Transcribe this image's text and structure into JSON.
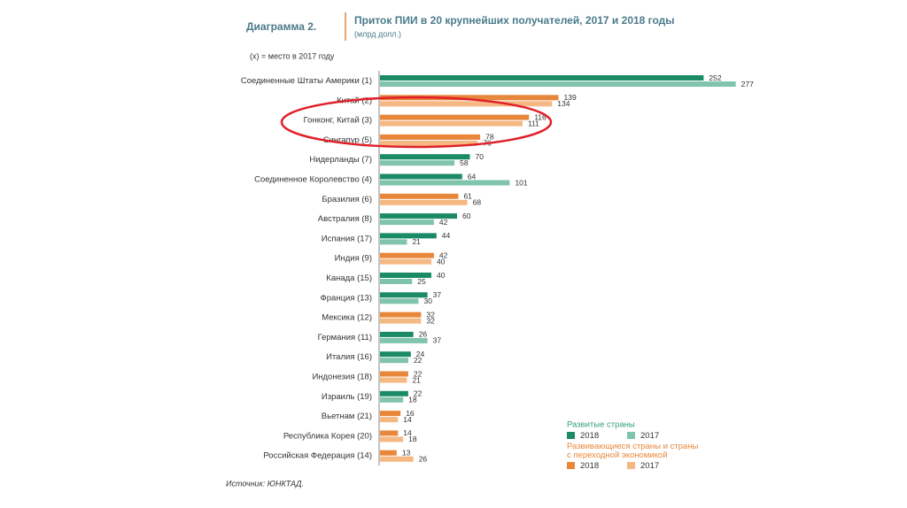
{
  "chart_data": {
    "type": "bar",
    "orientation": "horizontal",
    "figure_label": "Диаграмма 2.",
    "title": "Приток ПИИ в 20 крупнейших получателей, 2017 и 2018 годы",
    "subtitle": "(млрд долл.)",
    "note": "(x) = место в 2017 году",
    "source": "Источник: ЮНКТАД.",
    "categories": [
      "Соединенные Штаты Америки (1)",
      "Китай (2)",
      "Гонконг, Китай (3)",
      "Сингапур (5)",
      "Нидерланды (7)",
      "Соединенное Королевство (4)",
      "Бразилия (6)",
      "Австралия (8)",
      "Испания (17)",
      "Индия (9)",
      "Канада (15)",
      "Франция (13)",
      "Мексика (12)",
      "Германия (11)",
      "Италия (16)",
      "Индонезия (18)",
      "Израиль (19)",
      "Вьетнам (21)",
      "Республика Корея (20)",
      "Российская Федерация (14)"
    ],
    "groups": [
      {
        "name": "Развитые страны",
        "color": "#2e9e78",
        "series": [
          {
            "name": "2018",
            "color": "#1b8a67",
            "values": [
              252,
              null,
              null,
              null,
              70,
              64,
              null,
              60,
              44,
              null,
              40,
              37,
              null,
              26,
              24,
              null,
              22,
              null,
              null,
              null
            ]
          },
          {
            "name": "2017",
            "color": "#7fc4ab",
            "values": [
              277,
              null,
              null,
              null,
              58,
              101,
              null,
              42,
              21,
              null,
              25,
              30,
              null,
              37,
              22,
              null,
              18,
              null,
              null,
              null
            ]
          }
        ]
      },
      {
        "name": "Развивающиеся страны и страны с переходной экономикой",
        "color": "#e8873a",
        "series": [
          {
            "name": "2018",
            "color": "#e8873a",
            "values": [
              null,
              139,
              116,
              78,
              null,
              null,
              61,
              null,
              null,
              42,
              null,
              null,
              32,
              null,
              null,
              22,
              null,
              16,
              14,
              13
            ]
          },
          {
            "name": "2017",
            "color": "#f5b882",
            "values": [
              null,
              134,
              111,
              76,
              null,
              null,
              68,
              null,
              null,
              40,
              null,
              null,
              32,
              null,
              null,
              21,
              null,
              14,
              18,
              26
            ]
          }
        ]
      }
    ]
  }
}
